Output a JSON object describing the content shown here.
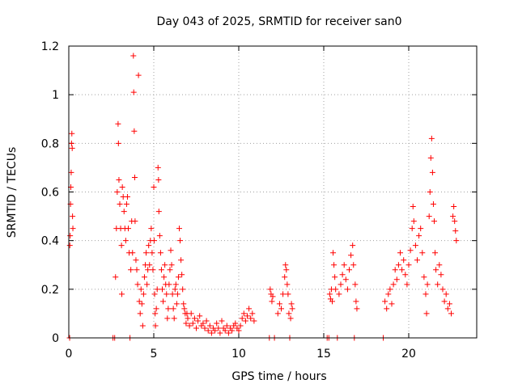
{
  "chart_data": {
    "type": "scatter",
    "title": "Day 043 of 2025, SRMTID for receiver san0",
    "xlabel": "GPS time / hours",
    "ylabel": "SRMTID / TECUs",
    "xlim": [
      0,
      24
    ],
    "ylim": [
      0,
      1.2
    ],
    "xticks": [
      0,
      5,
      10,
      15,
      20
    ],
    "xtick_labels": [
      "0",
      "5",
      "10",
      "15",
      "20"
    ],
    "yticks": [
      0,
      0.2,
      0.4,
      0.6,
      0.8,
      1.0,
      1.2
    ],
    "ytick_labels": [
      "0",
      "0.2",
      "0.4",
      "0.6",
      "0.8",
      "1",
      "1.2"
    ],
    "grid": true,
    "marker": "+",
    "color": "#ff0000",
    "series": [
      {
        "name": "SRMTID",
        "points": [
          [
            0.05,
            0.0
          ],
          [
            0.06,
            0.38
          ],
          [
            0.08,
            0.42
          ],
          [
            0.1,
            0.55
          ],
          [
            0.12,
            0.62
          ],
          [
            0.14,
            0.68
          ],
          [
            0.16,
            0.8
          ],
          [
            0.18,
            0.84
          ],
          [
            0.2,
            0.78
          ],
          [
            0.22,
            0.5
          ],
          [
            0.24,
            0.45
          ],
          [
            2.6,
            0.0
          ],
          [
            2.7,
            0.0
          ],
          [
            2.75,
            0.25
          ],
          [
            2.8,
            0.45
          ],
          [
            2.85,
            0.6
          ],
          [
            2.9,
            0.88
          ],
          [
            2.92,
            0.8
          ],
          [
            2.95,
            0.65
          ],
          [
            3.0,
            0.55
          ],
          [
            3.05,
            0.45
          ],
          [
            3.1,
            0.38
          ],
          [
            3.12,
            0.18
          ],
          [
            3.15,
            0.62
          ],
          [
            3.2,
            0.58
          ],
          [
            3.25,
            0.52
          ],
          [
            3.3,
            0.45
          ],
          [
            3.35,
            0.4
          ],
          [
            3.4,
            0.55
          ],
          [
            3.45,
            0.58
          ],
          [
            3.5,
            0.45
          ],
          [
            3.55,
            0.35
          ],
          [
            3.6,
            0.0
          ],
          [
            3.65,
            0.28
          ],
          [
            3.7,
            0.48
          ],
          [
            3.75,
            0.35
          ],
          [
            3.8,
            1.16
          ],
          [
            3.82,
            1.01
          ],
          [
            3.85,
            0.85
          ],
          [
            3.88,
            0.66
          ],
          [
            3.9,
            0.48
          ],
          [
            3.95,
            0.32
          ],
          [
            4.0,
            0.28
          ],
          [
            4.05,
            0.22
          ],
          [
            4.1,
            1.08
          ],
          [
            4.15,
            0.15
          ],
          [
            4.2,
            0.1
          ],
          [
            4.25,
            0.2
          ],
          [
            4.3,
            0.14
          ],
          [
            4.35,
            0.05
          ],
          [
            4.4,
            0.18
          ],
          [
            4.45,
            0.25
          ],
          [
            4.5,
            0.3
          ],
          [
            4.55,
            0.35
          ],
          [
            4.6,
            0.22
          ],
          [
            4.65,
            0.28
          ],
          [
            4.7,
            0.38
          ],
          [
            4.75,
            0.3
          ],
          [
            4.8,
            0.4
          ],
          [
            4.85,
            0.45
          ],
          [
            4.9,
            0.35
          ],
          [
            4.95,
            0.28
          ],
          [
            5.0,
            0.62
          ],
          [
            5.02,
            0.4
          ],
          [
            5.05,
            0.18
          ],
          [
            5.08,
            0.1
          ],
          [
            5.1,
            0.05
          ],
          [
            5.15,
            0.12
          ],
          [
            5.2,
            0.2
          ],
          [
            5.25,
            0.7
          ],
          [
            5.28,
            0.65
          ],
          [
            5.3,
            0.52
          ],
          [
            5.35,
            0.42
          ],
          [
            5.4,
            0.35
          ],
          [
            5.45,
            0.28
          ],
          [
            5.5,
            0.2
          ],
          [
            5.55,
            0.15
          ],
          [
            5.6,
            0.25
          ],
          [
            5.65,
            0.3
          ],
          [
            5.7,
            0.22
          ],
          [
            5.75,
            0.18
          ],
          [
            5.8,
            0.08
          ],
          [
            5.85,
            0.12
          ],
          [
            5.9,
            0.22
          ],
          [
            5.95,
            0.28
          ],
          [
            6.0,
            0.36
          ],
          [
            6.05,
            0.3
          ],
          [
            6.1,
            0.18
          ],
          [
            6.15,
            0.12
          ],
          [
            6.2,
            0.08
          ],
          [
            6.25,
            0.2
          ],
          [
            6.3,
            0.22
          ],
          [
            6.35,
            0.14
          ],
          [
            6.4,
            0.18
          ],
          [
            6.45,
            0.25
          ],
          [
            6.5,
            0.45
          ],
          [
            6.55,
            0.4
          ],
          [
            6.6,
            0.32
          ],
          [
            6.65,
            0.26
          ],
          [
            6.7,
            0.2
          ],
          [
            6.75,
            0.14
          ],
          [
            6.8,
            0.12
          ],
          [
            6.85,
            0.1
          ],
          [
            6.9,
            0.06
          ],
          [
            6.95,
            0.1
          ],
          [
            7.0,
            0.08
          ],
          [
            7.1,
            0.05
          ],
          [
            7.2,
            0.1
          ],
          [
            7.3,
            0.06
          ],
          [
            7.4,
            0.08
          ],
          [
            7.5,
            0.04
          ],
          [
            7.6,
            0.07
          ],
          [
            7.7,
            0.09
          ],
          [
            7.8,
            0.05
          ],
          [
            7.9,
            0.06
          ],
          [
            8.0,
            0.04
          ],
          [
            8.1,
            0.07
          ],
          [
            8.2,
            0.03
          ],
          [
            8.3,
            0.05
          ],
          [
            8.4,
            0.02
          ],
          [
            8.5,
            0.04
          ],
          [
            8.6,
            0.03
          ],
          [
            8.7,
            0.06
          ],
          [
            8.8,
            0.04
          ],
          [
            8.9,
            0.02
          ],
          [
            9.0,
            0.07
          ],
          [
            9.1,
            0.04
          ],
          [
            9.2,
            0.03
          ],
          [
            9.3,
            0.05
          ],
          [
            9.4,
            0.02
          ],
          [
            9.5,
            0.04
          ],
          [
            9.6,
            0.03
          ],
          [
            9.7,
            0.05
          ],
          [
            9.8,
            0.06
          ],
          [
            9.9,
            0.04
          ],
          [
            10.0,
            0.03
          ],
          [
            10.1,
            0.05
          ],
          [
            10.2,
            0.08
          ],
          [
            10.3,
            0.1
          ],
          [
            10.4,
            0.07
          ],
          [
            10.5,
            0.09
          ],
          [
            10.6,
            0.12
          ],
          [
            10.7,
            0.08
          ],
          [
            10.8,
            0.1
          ],
          [
            10.9,
            0.07
          ],
          [
            11.8,
            0.0
          ],
          [
            11.85,
            0.2
          ],
          [
            11.9,
            0.18
          ],
          [
            11.95,
            0.15
          ],
          [
            12.0,
            0.17
          ],
          [
            12.1,
            0.0
          ],
          [
            12.3,
            0.1
          ],
          [
            12.4,
            0.14
          ],
          [
            12.5,
            0.12
          ],
          [
            12.6,
            0.18
          ],
          [
            12.7,
            0.25
          ],
          [
            12.75,
            0.3
          ],
          [
            12.8,
            0.28
          ],
          [
            12.85,
            0.22
          ],
          [
            12.9,
            0.18
          ],
          [
            12.95,
            0.1
          ],
          [
            13.0,
            0.0
          ],
          [
            13.05,
            0.08
          ],
          [
            13.1,
            0.14
          ],
          [
            13.15,
            0.12
          ],
          [
            15.2,
            0.0
          ],
          [
            15.3,
            0.0
          ],
          [
            15.35,
            0.18
          ],
          [
            15.4,
            0.16
          ],
          [
            15.45,
            0.2
          ],
          [
            15.5,
            0.15
          ],
          [
            15.55,
            0.35
          ],
          [
            15.6,
            0.3
          ],
          [
            15.65,
            0.25
          ],
          [
            15.7,
            0.2
          ],
          [
            15.8,
            0.0
          ],
          [
            15.9,
            0.18
          ],
          [
            16.0,
            0.22
          ],
          [
            16.1,
            0.26
          ],
          [
            16.2,
            0.3
          ],
          [
            16.3,
            0.24
          ],
          [
            16.4,
            0.2
          ],
          [
            16.5,
            0.28
          ],
          [
            16.6,
            0.34
          ],
          [
            16.7,
            0.38
          ],
          [
            16.75,
            0.3
          ],
          [
            16.8,
            0.0
          ],
          [
            16.85,
            0.22
          ],
          [
            16.9,
            0.15
          ],
          [
            16.95,
            0.12
          ],
          [
            18.5,
            0.0
          ],
          [
            18.6,
            0.15
          ],
          [
            18.7,
            0.12
          ],
          [
            18.8,
            0.18
          ],
          [
            18.9,
            0.2
          ],
          [
            19.0,
            0.14
          ],
          [
            19.1,
            0.22
          ],
          [
            19.2,
            0.28
          ],
          [
            19.3,
            0.24
          ],
          [
            19.4,
            0.3
          ],
          [
            19.5,
            0.35
          ],
          [
            19.6,
            0.28
          ],
          [
            19.7,
            0.32
          ],
          [
            19.8,
            0.26
          ],
          [
            19.9,
            0.22
          ],
          [
            20.0,
            0.3
          ],
          [
            20.1,
            0.36
          ],
          [
            20.2,
            0.45
          ],
          [
            20.25,
            0.54
          ],
          [
            20.3,
            0.48
          ],
          [
            20.4,
            0.38
          ],
          [
            20.5,
            0.32
          ],
          [
            20.6,
            0.42
          ],
          [
            20.7,
            0.45
          ],
          [
            20.8,
            0.35
          ],
          [
            20.9,
            0.25
          ],
          [
            21.0,
            0.18
          ],
          [
            21.05,
            0.1
          ],
          [
            21.1,
            0.22
          ],
          [
            21.2,
            0.5
          ],
          [
            21.25,
            0.6
          ],
          [
            21.3,
            0.74
          ],
          [
            21.35,
            0.82
          ],
          [
            21.4,
            0.68
          ],
          [
            21.45,
            0.55
          ],
          [
            21.5,
            0.48
          ],
          [
            21.55,
            0.35
          ],
          [
            21.6,
            0.28
          ],
          [
            21.7,
            0.22
          ],
          [
            21.8,
            0.3
          ],
          [
            21.9,
            0.26
          ],
          [
            22.0,
            0.2
          ],
          [
            22.1,
            0.15
          ],
          [
            22.2,
            0.18
          ],
          [
            22.3,
            0.12
          ],
          [
            22.4,
            0.14
          ],
          [
            22.5,
            0.1
          ],
          [
            22.6,
            0.5
          ],
          [
            22.65,
            0.54
          ],
          [
            22.7,
            0.48
          ],
          [
            22.75,
            0.44
          ],
          [
            22.8,
            0.4
          ]
        ]
      }
    ]
  }
}
